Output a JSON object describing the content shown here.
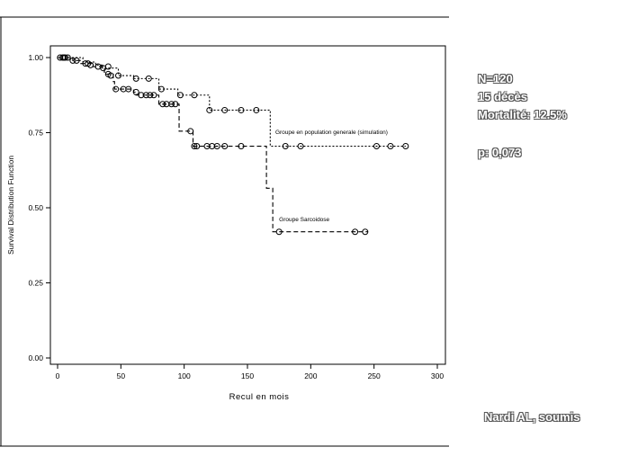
{
  "slide": {
    "stats": [
      "N=120",
      "15 décès",
      "Mortalité: 12.5%"
    ],
    "p_value": "p: 0,073",
    "citation": "Nardi AL, soumis"
  },
  "chart_data": {
    "type": "line",
    "title": "",
    "xlabel": "Recul en mois",
    "ylabel": "Survival Distribution Function",
    "xlim": [
      -5,
      300
    ],
    "ylim": [
      0,
      1
    ],
    "xticks": [
      0,
      50,
      100,
      150,
      200,
      250,
      300
    ],
    "yticks": [
      0.0,
      0.25,
      0.5,
      0.75,
      1.0
    ],
    "ytick_labels": [
      "0.00",
      "0.25",
      "0.50",
      "0.75",
      "1.00"
    ],
    "grid": false,
    "series": [
      {
        "name": "Groupe en population generale (simulation)",
        "style": "dotted",
        "steps": [
          [
            0,
            1.0
          ],
          [
            20,
            0.985
          ],
          [
            30,
            0.975
          ],
          [
            35,
            0.965
          ],
          [
            48,
            0.94
          ],
          [
            60,
            0.93
          ],
          [
            80,
            0.895
          ],
          [
            95,
            0.875
          ],
          [
            120,
            0.825
          ],
          [
            168,
            0.705
          ],
          [
            275,
            0.705
          ]
        ],
        "censored": [
          [
            5,
            1.0
          ],
          [
            12,
            0.99
          ],
          [
            24,
            0.98
          ],
          [
            40,
            0.97
          ],
          [
            48,
            0.94
          ],
          [
            62,
            0.93
          ],
          [
            72,
            0.93
          ],
          [
            82,
            0.895
          ],
          [
            97,
            0.875
          ],
          [
            108,
            0.875
          ],
          [
            120,
            0.825
          ],
          [
            132,
            0.825
          ],
          [
            145,
            0.825
          ],
          [
            157,
            0.825
          ],
          [
            180,
            0.705
          ],
          [
            192,
            0.705
          ],
          [
            252,
            0.705
          ],
          [
            263,
            0.705
          ],
          [
            275,
            0.705
          ]
        ]
      },
      {
        "name": "Groupe Sarcoidose",
        "style": "dashed",
        "steps": [
          [
            0,
            1.0
          ],
          [
            12,
            0.99
          ],
          [
            18,
            0.98
          ],
          [
            28,
            0.97
          ],
          [
            37,
            0.945
          ],
          [
            44,
            0.92
          ],
          [
            45,
            0.895
          ],
          [
            60,
            0.885
          ],
          [
            62,
            0.875
          ],
          [
            80,
            0.845
          ],
          [
            96,
            0.755
          ],
          [
            107,
            0.705
          ],
          [
            165,
            0.565
          ],
          [
            170,
            0.42
          ],
          [
            245,
            0.42
          ]
        ],
        "censored": [
          [
            2,
            1.0
          ],
          [
            4,
            1.0
          ],
          [
            6,
            1.0
          ],
          [
            8,
            1.0
          ],
          [
            15,
            0.99
          ],
          [
            22,
            0.98
          ],
          [
            26,
            0.975
          ],
          [
            32,
            0.97
          ],
          [
            36,
            0.965
          ],
          [
            40,
            0.945
          ],
          [
            42,
            0.94
          ],
          [
            46,
            0.895
          ],
          [
            52,
            0.895
          ],
          [
            56,
            0.895
          ],
          [
            62,
            0.885
          ],
          [
            66,
            0.875
          ],
          [
            70,
            0.875
          ],
          [
            73,
            0.875
          ],
          [
            76,
            0.875
          ],
          [
            83,
            0.845
          ],
          [
            86,
            0.845
          ],
          [
            90,
            0.845
          ],
          [
            93,
            0.845
          ],
          [
            105,
            0.755
          ],
          [
            108,
            0.705
          ],
          [
            110,
            0.705
          ],
          [
            118,
            0.705
          ],
          [
            122,
            0.705
          ],
          [
            126,
            0.705
          ],
          [
            132,
            0.705
          ],
          [
            145,
            0.705
          ],
          [
            175,
            0.42
          ],
          [
            235,
            0.42
          ],
          [
            243,
            0.42
          ]
        ]
      }
    ],
    "annotations": [
      {
        "text": "Groupe en population generale (simulation)",
        "x": 172,
        "y": 0.745
      },
      {
        "text": "Groupe Sarcoidose",
        "x": 175,
        "y": 0.455
      }
    ]
  }
}
